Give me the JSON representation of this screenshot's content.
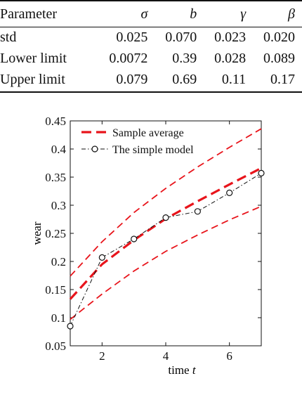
{
  "table": {
    "headers": [
      "Parameter",
      "σ",
      "b",
      "γ",
      "β"
    ],
    "rows": [
      [
        "std",
        "0.025",
        "0.070",
        "0.023",
        "0.020"
      ],
      [
        "Lower limit",
        "0.0072",
        "0.39",
        "0.028",
        "0.089"
      ],
      [
        "Upper limit",
        "0.079",
        "0.69",
        "0.11",
        "0.17"
      ]
    ]
  },
  "chart_data": {
    "type": "line",
    "xlabel": "time",
    "xlabel_var": "t",
    "ylabel": "wear",
    "xlim": [
      1,
      7
    ],
    "ylim": [
      0.05,
      0.45
    ],
    "x_ticks": [
      2,
      4,
      6
    ],
    "y_ticks": [
      "0.05",
      "0.1",
      "0.15",
      "0.2",
      "0.25",
      "0.3",
      "0.35",
      "0.4",
      "0.45"
    ],
    "grid": false,
    "legend_placement": "top-left",
    "series": [
      {
        "name": "Sample average",
        "style": "dashed-thick",
        "color": "#e8141b",
        "x": [
          1,
          2,
          3,
          4,
          5,
          6,
          7
        ],
        "y": [
          0.133,
          0.195,
          0.238,
          0.276,
          0.307,
          0.337,
          0.366
        ]
      },
      {
        "name": "",
        "style": "dashed",
        "color": "#e8141b",
        "x": [
          1,
          2,
          3,
          4,
          5,
          6,
          7
        ],
        "y": [
          0.174,
          0.235,
          0.287,
          0.33,
          0.368,
          0.403,
          0.436
        ]
      },
      {
        "name": "",
        "style": "dashed",
        "color": "#e8141b",
        "x": [
          1,
          2,
          3,
          4,
          5,
          6,
          7
        ],
        "y": [
          0.097,
          0.142,
          0.183,
          0.218,
          0.247,
          0.274,
          0.298
        ]
      },
      {
        "name": "The simple model",
        "style": "dashdot-circle",
        "color": "#111111",
        "x": [
          1,
          2,
          3,
          4,
          5,
          6,
          7
        ],
        "y": [
          0.085,
          0.207,
          0.24,
          0.278,
          0.289,
          0.322,
          0.357
        ]
      }
    ]
  }
}
